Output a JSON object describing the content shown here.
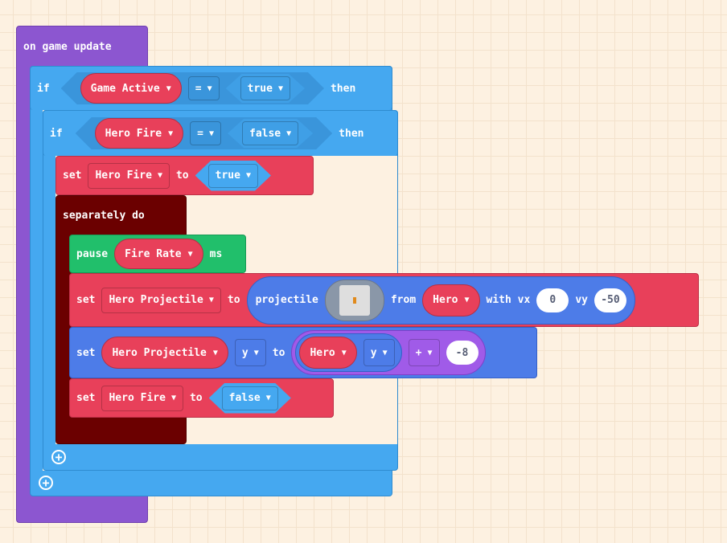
{
  "event": {
    "label": "on game update"
  },
  "if_outer": {
    "if": "if",
    "var": "Game Active",
    "op": "=",
    "value": "true",
    "then": "then"
  },
  "if_inner": {
    "if": "if",
    "var": "Hero Fire",
    "op": "=",
    "value": "false",
    "then": "then"
  },
  "set1": {
    "set": "set",
    "var": "Hero Fire",
    "to": "to",
    "value": "true"
  },
  "separately": {
    "label": "separately do"
  },
  "pause": {
    "label": "pause",
    "var": "Fire Rate",
    "unit": "ms"
  },
  "set_proj": {
    "set": "set",
    "var": "Hero Projectile",
    "to": "to",
    "projectile": "projectile",
    "from": "from",
    "sprite": "Hero",
    "with_vx": "with vx",
    "vx": "0",
    "vy_label": "vy",
    "vy": "-50"
  },
  "set_y": {
    "set": "set",
    "var": "Hero Projectile",
    "prop": "y",
    "to": "to",
    "sprite": "Hero",
    "sprite_prop": "y",
    "op": "+",
    "operand": "-8"
  },
  "set2": {
    "set": "set",
    "var": "Hero Fire",
    "to": "to",
    "value": "false"
  },
  "colors": {
    "events": "#8c56d0",
    "logic": "#45a8f0",
    "variables": "#e8405a",
    "loops": "#21bf6b",
    "control": "#6b0000",
    "sprites": "#4d7ce8",
    "math": "#a05be8"
  }
}
